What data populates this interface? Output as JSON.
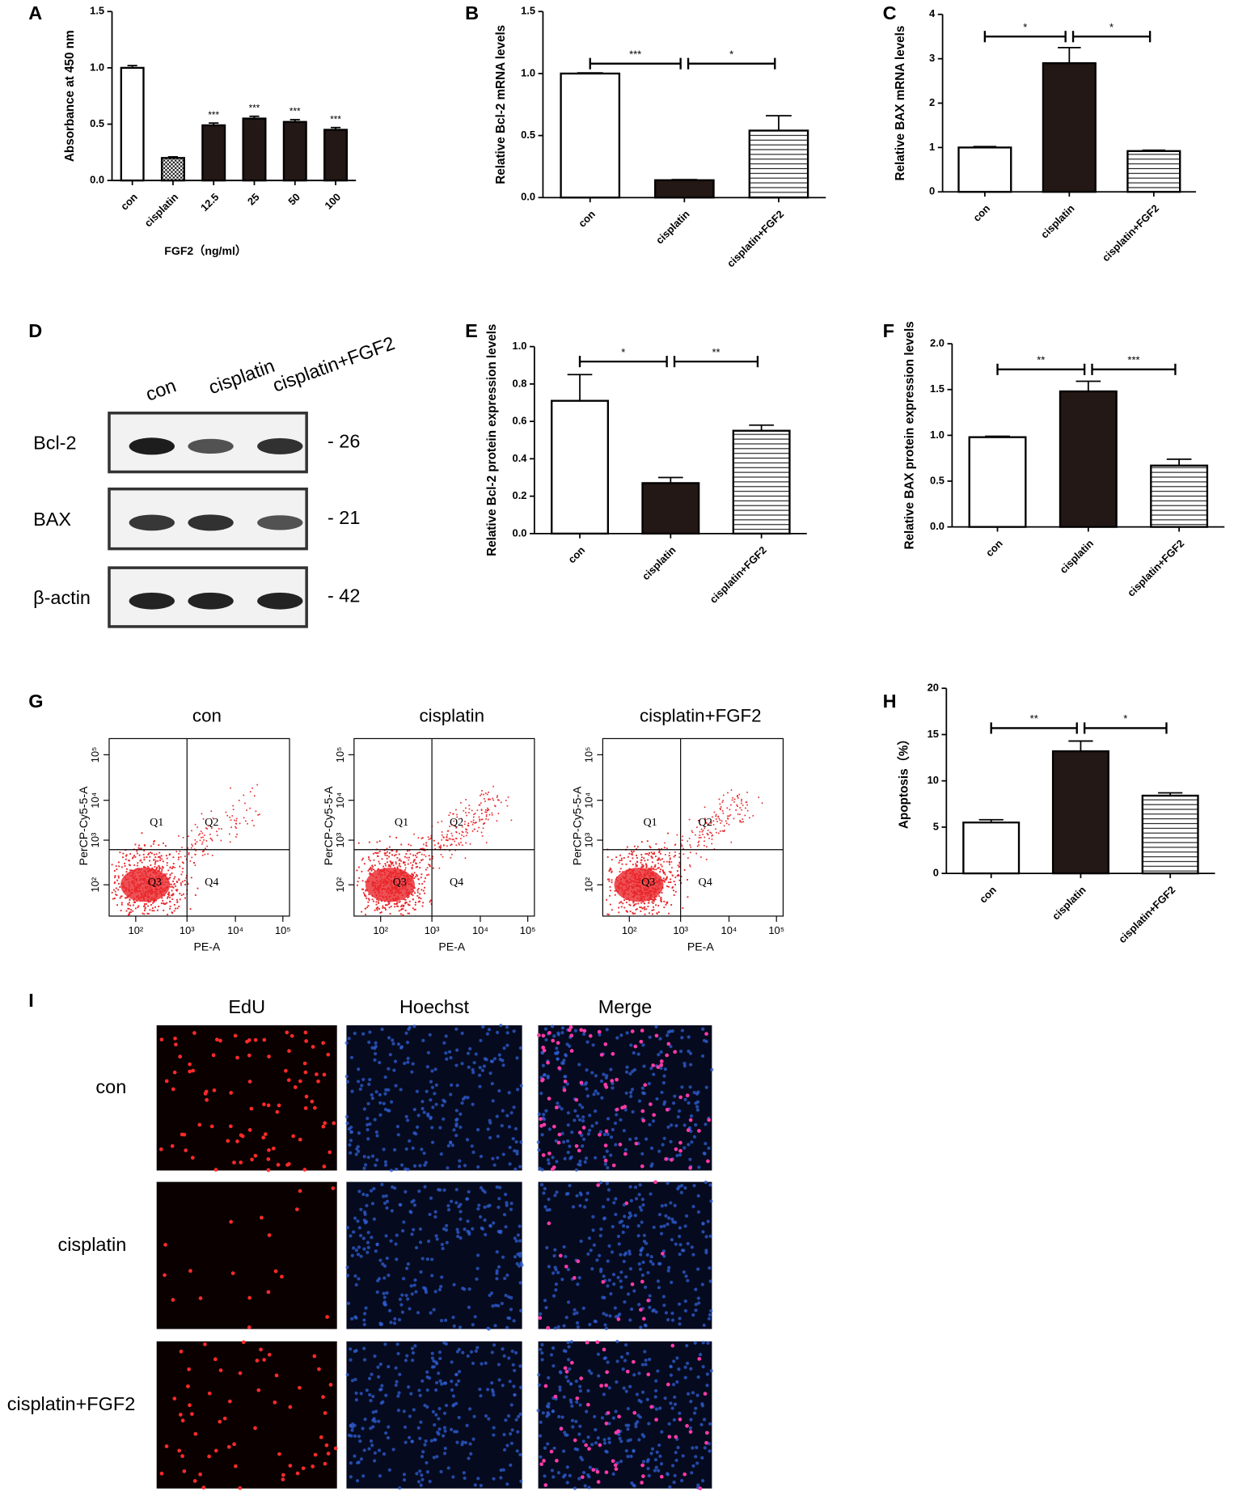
{
  "chart_data": [
    {
      "type": "bar",
      "label": "A",
      "ylabel": "Absorbance at 450 nm",
      "xlabel": "FGF2（ng/ml）",
      "categories": [
        "con",
        "cisplatin",
        "12.5",
        "25",
        "50",
        "100"
      ],
      "values": [
        1.0,
        0.2,
        0.49,
        0.55,
        0.52,
        0.45
      ],
      "errors": [
        0.02,
        0.01,
        0.02,
        0.02,
        0.02,
        0.02
      ],
      "fills": [
        "white",
        "dots",
        "black",
        "black",
        "black",
        "black"
      ],
      "significance": [
        null,
        null,
        "***",
        "***",
        "***",
        "***"
      ],
      "ylim": [
        0,
        1.5
      ],
      "yticks": [
        {
          "value": 0,
          "label": "0.0"
        },
        {
          "value": 0.5,
          "label": "0.5"
        },
        {
          "value": 1,
          "label": "1.0"
        },
        {
          "value": 1.5,
          "label": "1.5"
        }
      ]
    },
    {
      "type": "bar",
      "label": "B",
      "ylabel": "Relative Bcl-2  mRNA levels",
      "categories": [
        "con",
        "cisplatin",
        "cisplatin+FGF2"
      ],
      "values": [
        1.0,
        0.14,
        0.54
      ],
      "errors": [
        0.005,
        0.005,
        0.12
      ],
      "fills": [
        "white",
        "black",
        "hlines"
      ],
      "brackets": [
        {
          "from": 0,
          "to": 1,
          "y": 1.08,
          "label": "***"
        },
        {
          "from": 1,
          "to": 2,
          "y": 1.08,
          "label": "*"
        }
      ],
      "ylim": [
        0,
        1.5
      ],
      "yticks": [
        {
          "value": 0,
          "label": "0.0"
        },
        {
          "value": 0.5,
          "label": "0.5"
        },
        {
          "value": 1,
          "label": "1.0"
        },
        {
          "value": 1.5,
          "label": "1.5"
        }
      ]
    },
    {
      "type": "bar",
      "label": "C",
      "ylabel": "Relative BAX mRNA levels",
      "categories": [
        "con",
        "cisplatin",
        "cisplatin+FGF2"
      ],
      "values": [
        1.0,
        2.9,
        0.92
      ],
      "errors": [
        0.02,
        0.35,
        0.02
      ],
      "fills": [
        "white",
        "black",
        "hlines"
      ],
      "brackets": [
        {
          "from": 0,
          "to": 1,
          "y": 3.5,
          "label": "*"
        },
        {
          "from": 1,
          "to": 2,
          "y": 3.5,
          "label": "*"
        }
      ],
      "ylim": [
        0,
        4
      ],
      "yticks": [
        0,
        1,
        2,
        3,
        4
      ]
    },
    {
      "type": "bar",
      "label": "E",
      "ylabel": "Relative Bcl-2 protein expression levels",
      "categories": [
        "con",
        "cisplatin",
        "cisplatin+FGF2"
      ],
      "values": [
        0.71,
        0.27,
        0.55
      ],
      "errors": [
        0.14,
        0.03,
        0.03
      ],
      "fills": [
        "white",
        "black",
        "hlines"
      ],
      "brackets": [
        {
          "from": 0,
          "to": 1,
          "y": 0.92,
          "label": "*"
        },
        {
          "from": 1,
          "to": 2,
          "y": 0.92,
          "label": "**"
        }
      ],
      "ylim": [
        0,
        1
      ],
      "yticks": [
        {
          "value": 0,
          "label": "0.0"
        },
        {
          "value": 0.2,
          "label": "0.2"
        },
        {
          "value": 0.4,
          "label": "0.4"
        },
        {
          "value": 0.6,
          "label": "0.6"
        },
        {
          "value": 0.8,
          "label": "0.8"
        },
        {
          "value": 1,
          "label": "1.0"
        }
      ]
    },
    {
      "type": "bar",
      "label": "F",
      "ylabel": "Relative BAX protein expression levels",
      "categories": [
        "con",
        "cisplatin",
        "cisplatin+FGF2"
      ],
      "values": [
        0.98,
        1.48,
        0.67
      ],
      "errors": [
        0.01,
        0.11,
        0.07
      ],
      "fills": [
        "white",
        "black",
        "hlines"
      ],
      "brackets": [
        {
          "from": 0,
          "to": 1,
          "y": 1.72,
          "label": "**"
        },
        {
          "from": 1,
          "to": 2,
          "y": 1.72,
          "label": "***"
        }
      ],
      "ylim": [
        0,
        2
      ],
      "yticks": [
        {
          "value": 0,
          "label": "0.0"
        },
        {
          "value": 0.5,
          "label": "0.5"
        },
        {
          "value": 1,
          "label": "1.0"
        },
        {
          "value": 1.5,
          "label": "1.5"
        },
        {
          "value": 2,
          "label": "2.0"
        }
      ]
    },
    {
      "type": "bar",
      "label": "H",
      "ylabel": "Apoptosis（%）",
      "categories": [
        "con",
        "cisplatin",
        "cisplatin+FGF2"
      ],
      "values": [
        5.5,
        13.2,
        8.4
      ],
      "errors": [
        0.3,
        1.1,
        0.3
      ],
      "fills": [
        "white",
        "black",
        "hlines"
      ],
      "brackets": [
        {
          "from": 0,
          "to": 1,
          "y": 15.7,
          "label": "**"
        },
        {
          "from": 1,
          "to": 2,
          "y": 15.7,
          "label": "*"
        }
      ],
      "ylim": [
        0,
        20
      ],
      "yticks": [
        0,
        5,
        10,
        15,
        20
      ]
    }
  ],
  "blot": {
    "label": "D",
    "lanes": [
      "con",
      "cisplatin",
      "cisplatin+FGF2"
    ],
    "rows": [
      {
        "name": "Bcl-2",
        "size": "- 26"
      },
      {
        "name": "BAX",
        "size": "- 21"
      },
      {
        "name": "β-actin",
        "size": "- 42"
      }
    ]
  },
  "flow": {
    "label": "G",
    "plots": [
      "con",
      "cisplatin",
      "cisplatin+FGF2"
    ],
    "xlabel": "PE-A",
    "ylabel": "PerCP-Cy5-5-A",
    "ticks": [
      "10²",
      "10³",
      "10⁴",
      "10⁵"
    ],
    "quadrants": [
      "Q1",
      "Q2",
      "Q3",
      "Q4"
    ]
  },
  "edu": {
    "label": "I",
    "columns": [
      "EdU",
      "Hoechst",
      "Merge"
    ],
    "rows": [
      "con",
      "cisplatin",
      "cisplatin+FGF2"
    ]
  }
}
